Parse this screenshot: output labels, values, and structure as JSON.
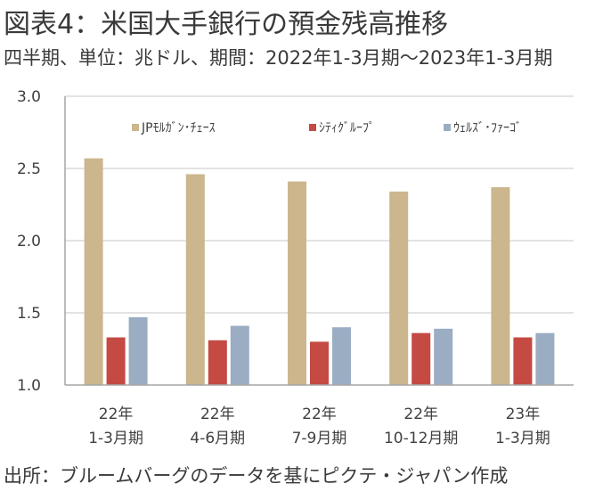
{
  "header": {
    "title": "図表4：米国大手銀行の預金残高推移",
    "subtitle": "四半期、単位：兆ドル、期間：2022年1-3月期～2023年1-3月期"
  },
  "footer": {
    "source": "出所：ブルームバーグのデータを基にピクテ・ジャパン作成"
  },
  "chart_data": {
    "type": "bar",
    "title": "図表4：米国大手銀行の預金残高推移",
    "subtitle": "四半期、単位：兆ドル、期間：2022年1-3月期～2023年1-3月期",
    "xlabel": "",
    "ylabel": "",
    "ylim": [
      1.0,
      3.0
    ],
    "yticks": [
      "1.0",
      "1.5",
      "2.0",
      "2.5",
      "3.0"
    ],
    "ytick_values": [
      1.0,
      1.5,
      2.0,
      2.5,
      3.0
    ],
    "grid": true,
    "legend_position": "top",
    "categories": [
      [
        "22年",
        "1-3月期"
      ],
      [
        "22年",
        "4-6月期"
      ],
      [
        "22年",
        "7-9月期"
      ],
      [
        "22年",
        "10-12月期"
      ],
      [
        "23年",
        "1-3月期"
      ]
    ],
    "series": [
      {
        "name": "JPﾓﾙｶﾞﾝ･ﾁｪｰｽ",
        "color": "#CBB68D",
        "values": [
          2.57,
          2.46,
          2.41,
          2.34,
          2.37
        ]
      },
      {
        "name": "ｼﾃｨｸﾞﾙｰﾌﾟ",
        "color": "#C44A43",
        "values": [
          1.33,
          1.31,
          1.3,
          1.36,
          1.33
        ]
      },
      {
        "name": "ｳｪﾙｽﾞ･ﾌｧｰｺﾞ",
        "color": "#9BADC3",
        "values": [
          1.47,
          1.41,
          1.4,
          1.39,
          1.36
        ]
      }
    ]
  }
}
